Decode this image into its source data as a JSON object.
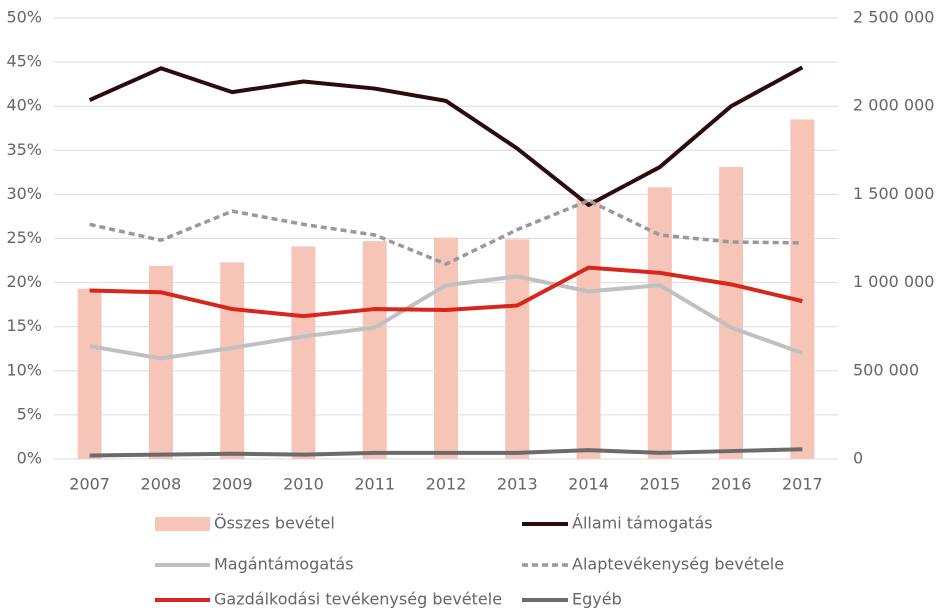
{
  "chart_data": {
    "type": "bar",
    "categories": [
      "2007",
      "2008",
      "2009",
      "2010",
      "2011",
      "2012",
      "2013",
      "2014",
      "2015",
      "2016",
      "2017"
    ],
    "series": [
      {
        "name": "Összes bevétel",
        "type": "bar",
        "axis": "y2",
        "color": "#f7c4b8",
        "values": [
          965000,
          1095000,
          1115000,
          1205000,
          1235000,
          1255000,
          1245000,
          1475000,
          1540000,
          1655000,
          1925000
        ]
      },
      {
        "name": "Állami támogatás",
        "type": "line",
        "color": "#2b0a10",
        "values": [
          40.7,
          44.3,
          41.6,
          42.8,
          42.0,
          40.6,
          35.2,
          28.8,
          33.1,
          40.0,
          44.4
        ]
      },
      {
        "name": "Magántámogatás",
        "type": "line",
        "color": "#c0c0c0",
        "values": [
          12.8,
          11.4,
          12.6,
          13.9,
          14.9,
          19.7,
          20.7,
          19.0,
          19.7,
          14.9,
          12.0
        ]
      },
      {
        "name": "Alaptevékenység bevétele",
        "type": "line",
        "dashed": true,
        "color": "#999999",
        "values": [
          26.6,
          24.8,
          28.1,
          26.6,
          25.4,
          22.1,
          26.0,
          29.3,
          25.4,
          24.6,
          24.5
        ]
      },
      {
        "name": "Gazdálkodási tevékenység bevétele",
        "type": "line",
        "color": "#d9261c",
        "values": [
          19.1,
          18.9,
          17.0,
          16.2,
          17.0,
          16.9,
          17.4,
          21.7,
          21.1,
          19.8,
          17.9
        ]
      },
      {
        "name": "Egyéb",
        "type": "line",
        "color": "#6b6b6b",
        "values": [
          0.4,
          0.5,
          0.6,
          0.5,
          0.7,
          0.7,
          0.7,
          1.0,
          0.7,
          0.9,
          1.1
        ]
      }
    ],
    "ylim": [
      0,
      50
    ],
    "yticks": [
      {
        "value": 0,
        "label": "0%"
      },
      {
        "value": 5,
        "label": "5%"
      },
      {
        "value": 10,
        "label": "10%"
      },
      {
        "value": 15,
        "label": "15%"
      },
      {
        "value": 20,
        "label": "20%"
      },
      {
        "value": 25,
        "label": "25%"
      },
      {
        "value": 30,
        "label": "30%"
      },
      {
        "value": 35,
        "label": "35%"
      },
      {
        "value": 40,
        "label": "40%"
      },
      {
        "value": 45,
        "label": "45%"
      },
      {
        "value": 50,
        "label": "50%"
      }
    ],
    "y2lim": [
      0,
      2500000
    ],
    "y2ticks": [
      0,
      {
        "value": 500000,
        "label": "500 000"
      },
      {
        "value": 1000000,
        "label": "1 000 000"
      },
      {
        "value": 1500000,
        "label": "1 500 000"
      },
      {
        "value": 2000000,
        "label": "2 000 000"
      },
      {
        "value": 2500000,
        "label": "2 500 000"
      }
    ],
    "grid": true,
    "legend": "bottom"
  }
}
